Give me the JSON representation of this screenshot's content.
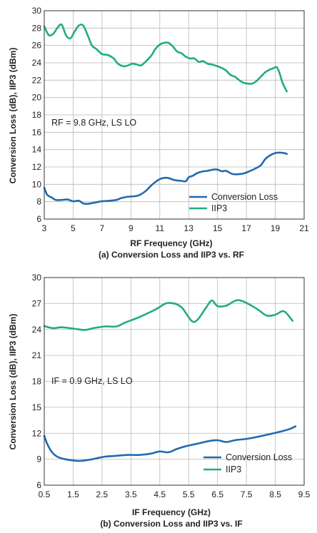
{
  "colors": {
    "conversion_loss": "#1f6bb0",
    "iip3": "#1fae7e",
    "grid": "#b9b9b9",
    "frame": "#333333"
  },
  "chart_data": [
    {
      "type": "line",
      "caption": "(a) Conversion Loss and IIP3 vs. RF",
      "xlabel": "RF Frequency (GHz)",
      "ylabel": "Conversion Loss (dB), IIP3 (dBm)",
      "xlim": [
        3,
        21
      ],
      "ylim": [
        6,
        30
      ],
      "xticks": [
        3,
        5,
        7,
        9,
        11,
        13,
        15,
        17,
        19,
        21
      ],
      "yticks": [
        6,
        8,
        10,
        12,
        14,
        16,
        18,
        20,
        22,
        24,
        26,
        28,
        30
      ],
      "grid": true,
      "legend_position": "bottom-right",
      "annotation": "RF = 9.8 GHz, LS LO",
      "series": [
        {
          "name": "Conversion Loss",
          "color": "#1f6bb0",
          "x": [
            3.0,
            3.2,
            3.5,
            3.8,
            4.2,
            4.6,
            5.0,
            5.4,
            5.7,
            6.0,
            6.5,
            7.0,
            7.5,
            8.0,
            8.3,
            8.7,
            9.0,
            9.5,
            10.0,
            10.5,
            11.0,
            11.5,
            12.0,
            12.5,
            12.8,
            13.0,
            13.3,
            13.6,
            14.0,
            14.3,
            14.7,
            15.0,
            15.3,
            15.6,
            16.0,
            16.3,
            16.8,
            17.2,
            17.6,
            18.0,
            18.3,
            18.6,
            19.0,
            19.3,
            19.6,
            19.8
          ],
          "y": [
            9.6,
            8.8,
            8.5,
            8.2,
            8.2,
            8.25,
            8.05,
            8.1,
            7.8,
            7.75,
            7.9,
            8.05,
            8.1,
            8.2,
            8.4,
            8.55,
            8.6,
            8.7,
            9.2,
            10.0,
            10.6,
            10.75,
            10.5,
            10.4,
            10.35,
            10.8,
            11.0,
            11.3,
            11.5,
            11.55,
            11.7,
            11.7,
            11.5,
            11.55,
            11.2,
            11.15,
            11.25,
            11.5,
            11.8,
            12.2,
            12.9,
            13.3,
            13.6,
            13.65,
            13.6,
            13.5
          ]
        },
        {
          "name": "IIP3",
          "color": "#1fae7e",
          "x": [
            3.0,
            3.3,
            3.6,
            3.9,
            4.2,
            4.5,
            4.8,
            5.1,
            5.4,
            5.7,
            6.0,
            6.3,
            6.6,
            7.0,
            7.4,
            7.8,
            8.1,
            8.5,
            8.8,
            9.1,
            9.4,
            9.7,
            10.0,
            10.4,
            10.7,
            11.0,
            11.3,
            11.6,
            11.9,
            12.2,
            12.5,
            12.8,
            13.1,
            13.4,
            13.7,
            14.0,
            14.3,
            14.6,
            15.0,
            15.3,
            15.6,
            15.9,
            16.2,
            16.5,
            16.8,
            17.1,
            17.4,
            17.7,
            18.0,
            18.3,
            18.6,
            18.9,
            19.1,
            19.3,
            19.5,
            19.8
          ],
          "y": [
            28.2,
            27.2,
            27.3,
            28.0,
            28.4,
            27.2,
            26.8,
            27.6,
            28.3,
            28.3,
            27.2,
            26.0,
            25.6,
            25.0,
            24.9,
            24.5,
            23.9,
            23.6,
            23.7,
            23.9,
            23.8,
            23.7,
            24.1,
            24.8,
            25.6,
            26.1,
            26.3,
            26.3,
            25.9,
            25.3,
            25.1,
            24.7,
            24.5,
            24.5,
            24.1,
            24.2,
            23.9,
            23.8,
            23.6,
            23.4,
            23.1,
            22.6,
            22.4,
            22.0,
            21.7,
            21.6,
            21.6,
            21.9,
            22.4,
            22.9,
            23.2,
            23.4,
            23.5,
            22.8,
            21.7,
            20.7
          ]
        }
      ]
    },
    {
      "type": "line",
      "caption": "(b) Conversion Loss and IIP3 vs. IF",
      "xlabel": "IF Frequency (GHz)",
      "ylabel": "Conversion Loss (dB), IIP3 (dBm)",
      "xlim": [
        0.5,
        9.5
      ],
      "ylim": [
        6,
        30
      ],
      "xticks": [
        0.5,
        1.5,
        2.5,
        3.5,
        4.5,
        5.5,
        6.5,
        7.5,
        8.5,
        9.5
      ],
      "yticks": [
        6,
        9,
        12,
        15,
        18,
        21,
        24,
        27,
        30
      ],
      "grid": true,
      "legend_position": "bottom-right",
      "annotation": "IF = 0.9 GHz, LS LO",
      "series": [
        {
          "name": "Conversion Loss",
          "color": "#1f6bb0",
          "x": [
            0.5,
            0.6,
            0.75,
            0.9,
            1.1,
            1.4,
            1.7,
            2.0,
            2.3,
            2.6,
            3.0,
            3.4,
            3.8,
            4.2,
            4.5,
            4.8,
            5.1,
            5.4,
            5.8,
            6.2,
            6.5,
            6.8,
            7.1,
            7.5,
            7.9,
            8.3,
            8.7,
            9.0,
            9.2
          ],
          "y": [
            11.7,
            10.8,
            9.9,
            9.4,
            9.1,
            8.9,
            8.8,
            8.9,
            9.1,
            9.3,
            9.4,
            9.5,
            9.5,
            9.65,
            9.9,
            9.8,
            10.2,
            10.5,
            10.8,
            11.1,
            11.2,
            11.0,
            11.2,
            11.35,
            11.6,
            11.9,
            12.2,
            12.5,
            12.8
          ]
        },
        {
          "name": "IIP3",
          "color": "#1fae7e",
          "x": [
            0.5,
            0.8,
            1.1,
            1.5,
            1.9,
            2.2,
            2.6,
            3.0,
            3.3,
            3.7,
            4.1,
            4.4,
            4.7,
            4.9,
            5.1,
            5.3,
            5.6,
            5.8,
            6.1,
            6.3,
            6.5,
            6.8,
            7.1,
            7.3,
            7.6,
            7.9,
            8.2,
            8.5,
            8.8,
            9.1
          ],
          "y": [
            24.4,
            24.15,
            24.25,
            24.1,
            23.95,
            24.15,
            24.35,
            24.35,
            24.8,
            25.3,
            25.9,
            26.4,
            27.0,
            27.05,
            26.9,
            26.4,
            25.0,
            25.1,
            26.5,
            27.35,
            26.7,
            26.75,
            27.3,
            27.35,
            26.9,
            26.3,
            25.6,
            25.7,
            26.1,
            25.0
          ]
        }
      ]
    }
  ]
}
